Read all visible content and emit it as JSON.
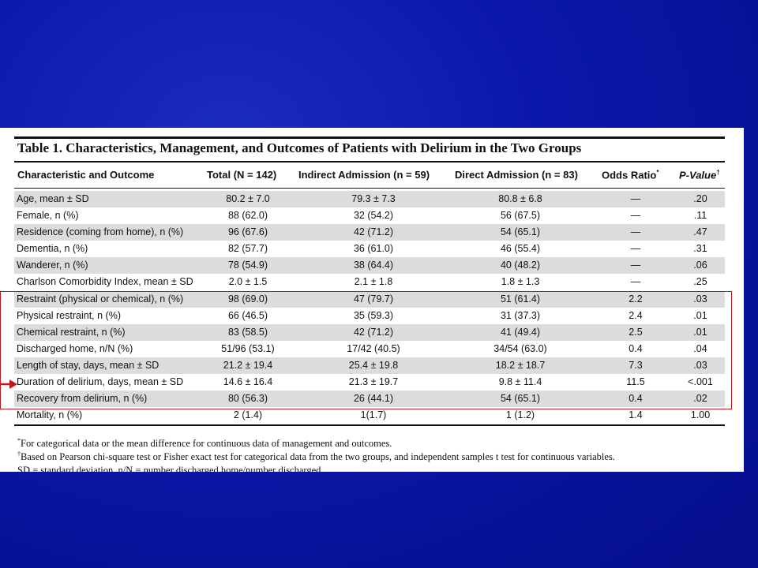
{
  "table": {
    "title": "Table 1.  Characteristics, Management, and Outcomes of Patients with Delirium in the Two Groups",
    "headers": {
      "characteristic": "Characteristic and Outcome",
      "total": "Total (N = 142)",
      "indirect": "Indirect Admission (n = 59)",
      "direct": "Direct Admission (n = 83)",
      "odds_ratio": "Odds Ratio",
      "odds_ratio_mark": "*",
      "p_value": "P-Value",
      "p_value_mark": "†"
    },
    "rows": [
      {
        "label": "Age, mean ± SD",
        "total": "80.2 ± 7.0",
        "indirect": "79.3 ± 7.3",
        "direct": "80.8 ± 6.8",
        "or": "—",
        "p": ".20"
      },
      {
        "label": "Female, n (%)",
        "total": "88 (62.0)",
        "indirect": "32 (54.2)",
        "direct": "56 (67.5)",
        "or": "—",
        "p": ".11"
      },
      {
        "label": "Residence (coming from home), n (%)",
        "total": "96 (67.6)",
        "indirect": "42 (71.2)",
        "direct": "54 (65.1)",
        "or": "—",
        "p": ".47"
      },
      {
        "label": "Dementia, n (%)",
        "total": "82 (57.7)",
        "indirect": "36 (61.0)",
        "direct": "46 (55.4)",
        "or": "—",
        "p": ".31"
      },
      {
        "label": "Wanderer, n (%)",
        "total": "78 (54.9)",
        "indirect": "38 (64.4)",
        "direct": "40 (48.2)",
        "or": "—",
        "p": ".06"
      },
      {
        "label": "Charlson Comorbidity Index, mean ± SD",
        "total": "2.0 ± 1.5",
        "indirect": "2.1 ± 1.8",
        "direct": "1.8 ± 1.3",
        "or": "—",
        "p": ".25"
      },
      {
        "label": "Restraint (physical or chemical), n (%)",
        "total": "98 (69.0)",
        "indirect": "47 (79.7)",
        "direct": "51 (61.4)",
        "or": "2.2",
        "p": ".03"
      },
      {
        "label": "Physical restraint, n (%)",
        "total": "66 (46.5)",
        "indirect": "35 (59.3)",
        "direct": "31 (37.3)",
        "or": "2.4",
        "p": ".01"
      },
      {
        "label": "Chemical restraint, n (%)",
        "total": "83 (58.5)",
        "indirect": "42 (71.2)",
        "direct": "41 (49.4)",
        "or": "2.5",
        "p": ".01"
      },
      {
        "label": "Discharged home, n/N (%)",
        "total": "51/96 (53.1)",
        "indirect": "17/42 (40.5)",
        "direct": "34/54 (63.0)",
        "or": "0.4",
        "p": ".04"
      },
      {
        "label": "Length of stay, days, mean ± SD",
        "total": "21.2 ± 19.4",
        "indirect": "25.4 ± 19.8",
        "direct": "18.2 ± 18.7",
        "or": "7.3",
        "p": ".03"
      },
      {
        "label": "Duration of delirium, days, mean ± SD",
        "total": "14.6 ± 16.4",
        "indirect": "21.3 ± 19.7",
        "direct": "9.8 ± 11.4",
        "or": "11.5",
        "p": "<.001"
      },
      {
        "label": "Recovery from delirium, n (%)",
        "total": "80 (56.3)",
        "indirect": "26 (44.1)",
        "direct": "54 (65.1)",
        "or": "0.4",
        "p": ".02"
      },
      {
        "label": "Mortality, n (%)",
        "total": "2 (1.4)",
        "indirect": "1(1.7)",
        "direct": "1 (1.2)",
        "or": "1.4",
        "p": "1.00"
      }
    ],
    "footnotes": [
      {
        "mark": "*",
        "text": "For categorical data or the mean difference for continuous data of management and outcomes."
      },
      {
        "mark": "†",
        "text": "Based on Pearson chi-square test or Fisher exact test for categorical data from the two groups, and independent samples t test for continuous variables."
      },
      {
        "mark": "",
        "text": "SD = standard deviation, n/N = number discharged home/number discharged."
      }
    ]
  },
  "annotations": {
    "box_color": "#c0181c",
    "arrow_color": "#c0181c",
    "highlighted_rows": [
      6,
      7,
      8,
      9,
      10,
      11,
      12
    ],
    "arrow_row": 11
  },
  "colors": {
    "background": "#0b16a8",
    "row_shade": "#dcdcdc"
  }
}
